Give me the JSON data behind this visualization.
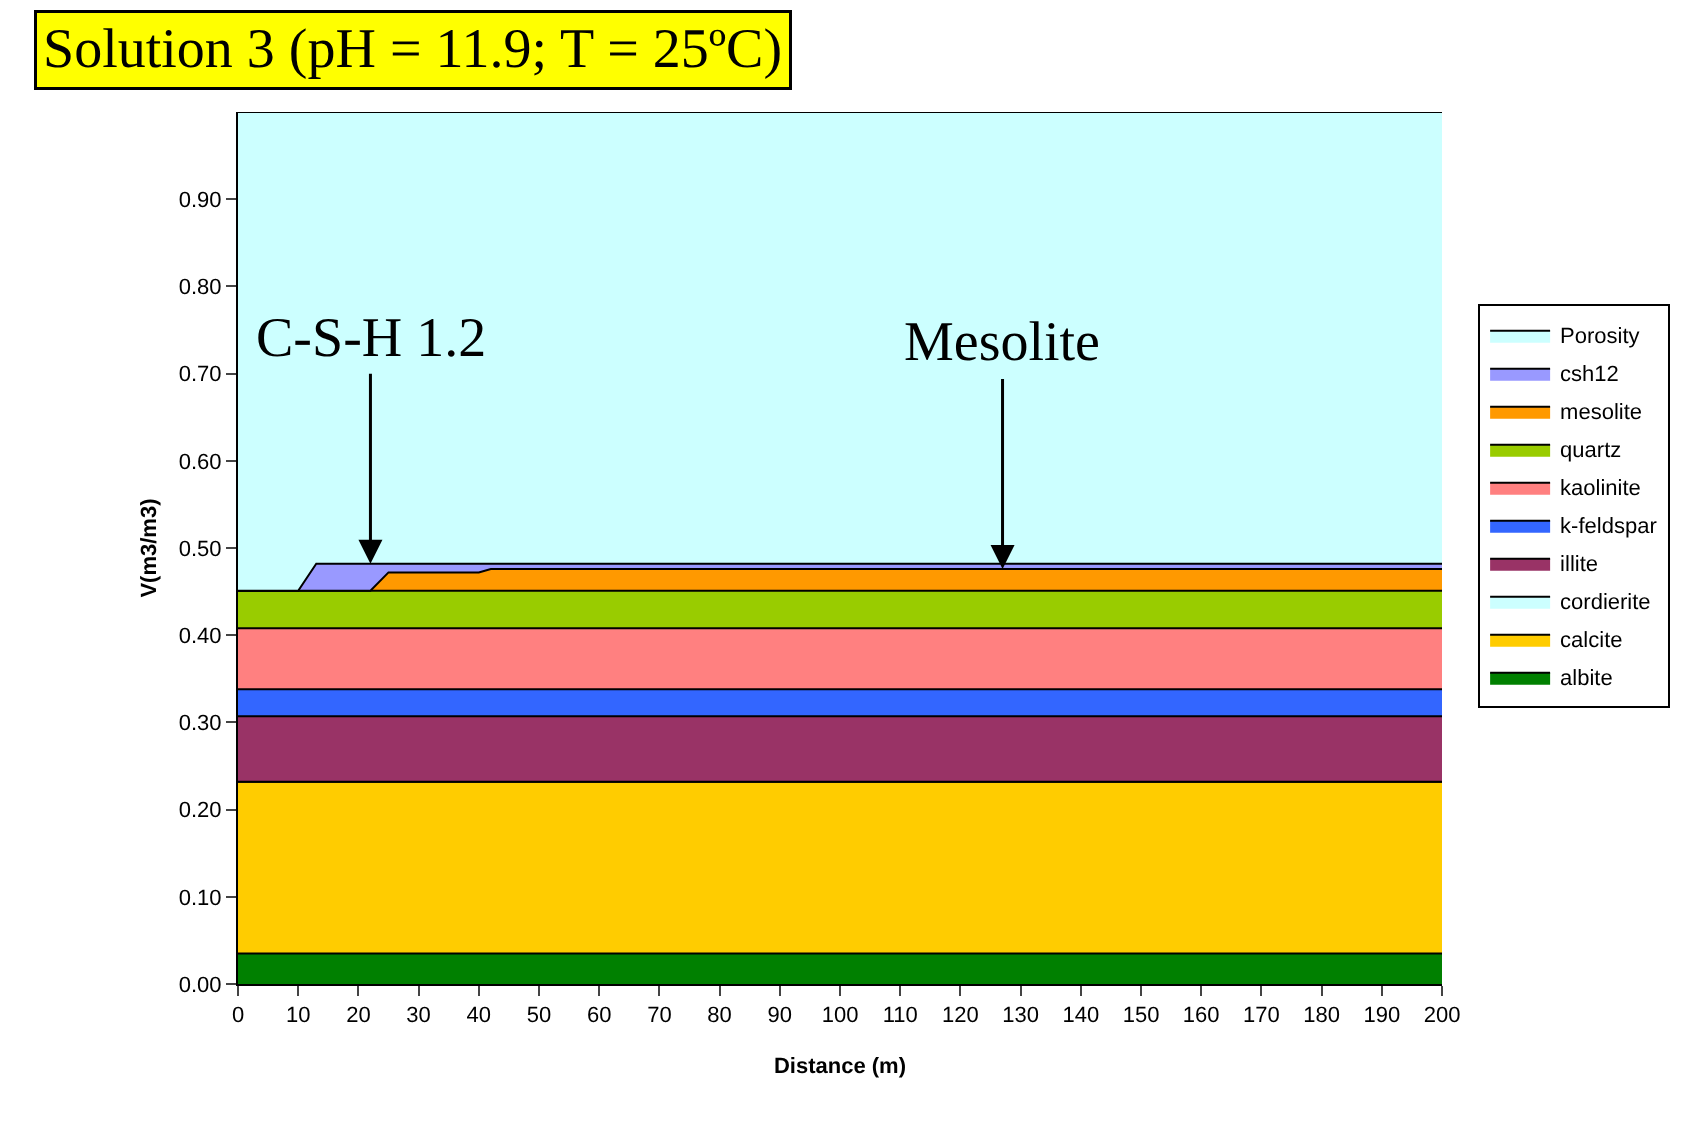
{
  "chart_data": {
    "type": "area",
    "stacked": true,
    "title": "Solution 3 (pH = 11.9; T = 25ºC)",
    "xlabel": "Distance (m)",
    "ylabel": "V(m3/m3)",
    "x": [
      0,
      10,
      13,
      22,
      25,
      40,
      42,
      200
    ],
    "series": [
      {
        "name": "albite",
        "color": "#008000",
        "values": [
          0.035,
          0.035,
          0.035,
          0.035,
          0.035,
          0.035,
          0.035,
          0.035
        ]
      },
      {
        "name": "calcite",
        "color": "#ffcc00",
        "values": [
          0.197,
          0.197,
          0.197,
          0.197,
          0.197,
          0.197,
          0.197,
          0.197
        ]
      },
      {
        "name": "cordierite",
        "color": "#ccffff",
        "values": [
          null,
          null,
          null,
          null,
          null,
          null,
          null,
          null
        ]
      },
      {
        "name": "illite",
        "color": "#993366",
        "values": [
          0.075,
          0.075,
          0.075,
          0.075,
          0.075,
          0.075,
          0.075,
          0.075
        ]
      },
      {
        "name": "k-feldspar",
        "color": "#3366ff",
        "values": [
          0.031,
          0.031,
          0.031,
          0.031,
          0.031,
          0.031,
          0.031,
          0.031
        ]
      },
      {
        "name": "kaolinite",
        "color": "#ff8080",
        "values": [
          0.07,
          0.07,
          0.07,
          0.07,
          0.07,
          0.07,
          0.07,
          0.07
        ]
      },
      {
        "name": "quartz",
        "color": "#99cc00",
        "values": [
          0.043,
          0.043,
          0.043,
          0.043,
          0.043,
          0.043,
          0.043,
          0.043
        ]
      },
      {
        "name": "mesolite",
        "color": "#ff9900",
        "values": [
          0,
          0,
          0,
          0,
          0.021,
          0.021,
          0.025,
          0.025
        ]
      },
      {
        "name": "csh12",
        "color": "#9999ff",
        "values": [
          0,
          0,
          0.031,
          0.031,
          0.01,
          0.01,
          0.006,
          0.006
        ]
      },
      {
        "name": "Porosity",
        "color": "#ccffff",
        "values": [
          0.549,
          0.549,
          0.518,
          0.518,
          0.518,
          0.518,
          0.518,
          0.518
        ]
      }
    ],
    "xlim": [
      0,
      200
    ],
    "xticks": [
      0,
      10,
      20,
      30,
      40,
      50,
      60,
      70,
      80,
      90,
      100,
      110,
      120,
      130,
      140,
      150,
      160,
      170,
      180,
      190,
      200
    ],
    "ylim": [
      0,
      1
    ],
    "yticks": [
      {
        "value": 0,
        "label": "0.00"
      },
      {
        "value": 0.1,
        "label": "0.10"
      },
      {
        "value": 0.2,
        "label": "0.20"
      },
      {
        "value": 0.3,
        "label": "0.30"
      },
      {
        "value": 0.4,
        "label": "0.40"
      },
      {
        "value": 0.5,
        "label": "0.50"
      },
      {
        "value": 0.6,
        "label": "0.60"
      },
      {
        "value": 0.7,
        "label": "0.70"
      },
      {
        "value": 0.8,
        "label": "0.80"
      },
      {
        "value": 0.9,
        "label": "0.90"
      }
    ],
    "annotations": [
      {
        "text": "C-S-H 1.2",
        "x": 22,
        "y": 0.482
      },
      {
        "text": "Mesolite",
        "x": 127,
        "y": 0.476
      }
    ],
    "legend": "right"
  }
}
